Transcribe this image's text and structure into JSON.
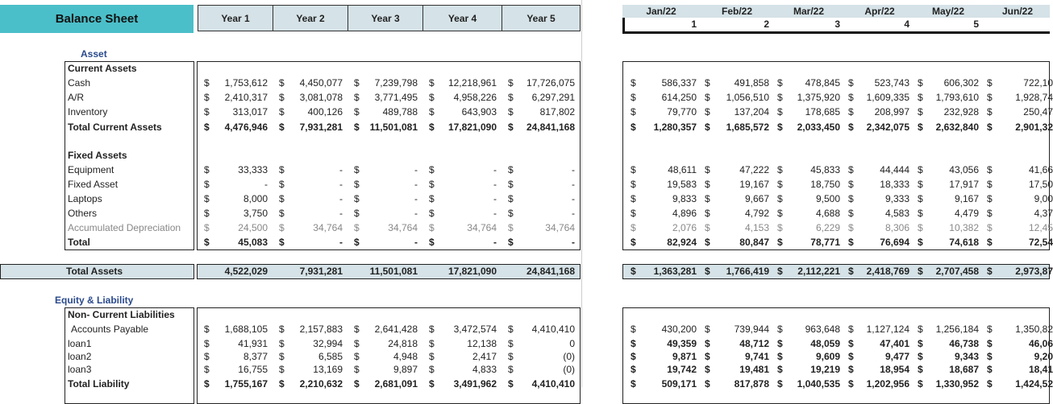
{
  "title": "Balance Sheet",
  "years": [
    "Year 1",
    "Year 2",
    "Year 3",
    "Year 4",
    "Year 5"
  ],
  "months": [
    "Jan/22",
    "Feb/22",
    "Mar/22",
    "Apr/22",
    "May/22",
    "Jun/22"
  ],
  "month_numbers": [
    "1",
    "2",
    "3",
    "4",
    "5"
  ],
  "currency": "$",
  "sections": {
    "asset": "Asset",
    "equity": "Equity & Liability"
  },
  "rows": [
    {
      "label": "Current Assets",
      "style": "b",
      "header": true
    },
    {
      "label": "Cash",
      "years": [
        "1,753,612",
        "4,450,077",
        "7,239,798",
        "12,218,961",
        "17,726,075"
      ],
      "months": [
        "586,337",
        "491,858",
        "478,845",
        "523,743",
        "606,302",
        "722,10"
      ]
    },
    {
      "label": "A/R",
      "years": [
        "2,410,317",
        "3,081,078",
        "3,771,495",
        "4,958,226",
        "6,297,291"
      ],
      "months": [
        "614,250",
        "1,056,510",
        "1,375,920",
        "1,609,335",
        "1,793,610",
        "1,928,74"
      ]
    },
    {
      "label": "Inventory",
      "years": [
        "313,017",
        "400,126",
        "489,788",
        "643,903",
        "817,802"
      ],
      "months": [
        "79,770",
        "137,204",
        "178,685",
        "208,997",
        "232,928",
        "250,47"
      ]
    },
    {
      "label": "Total Current Assets",
      "style": "b",
      "years": [
        "4,476,946",
        "7,931,281",
        "11,501,081",
        "17,821,090",
        "24,841,168"
      ],
      "months": [
        "1,280,357",
        "1,685,572",
        "2,033,450",
        "2,342,075",
        "2,632,840",
        "2,901,32"
      ]
    },
    {
      "label": "Fixed Assets",
      "style": "b",
      "header": true
    },
    {
      "label": "Equipment",
      "years": [
        "33,333",
        "-",
        "-",
        "-",
        "-"
      ],
      "months": [
        "48,611",
        "47,222",
        "45,833",
        "44,444",
        "43,056",
        "41,66"
      ]
    },
    {
      "label": "Fixed Asset",
      "years": [
        "-",
        "-",
        "-",
        "-",
        "-"
      ],
      "months": [
        "19,583",
        "19,167",
        "18,750",
        "18,333",
        "17,917",
        "17,50"
      ]
    },
    {
      "label": "Laptops",
      "years": [
        "8,000",
        "-",
        "-",
        "-",
        "-"
      ],
      "months": [
        "9,833",
        "9,667",
        "9,500",
        "9,333",
        "9,167",
        "9,00"
      ]
    },
    {
      "label": "Others",
      "years": [
        "3,750",
        "-",
        "-",
        "-",
        "-"
      ],
      "months": [
        "4,896",
        "4,792",
        "4,688",
        "4,583",
        "4,479",
        "4,37"
      ]
    },
    {
      "label": "Accumulated Depreciation",
      "style": "g",
      "years": [
        "24,500",
        "34,764",
        "34,764",
        "34,764",
        "34,764"
      ],
      "months": [
        "2,076",
        "4,153",
        "6,229",
        "8,306",
        "10,382",
        "12,45"
      ]
    },
    {
      "label": "Total",
      "style": "b",
      "years": [
        "45,083",
        "-",
        "-",
        "-",
        "-"
      ],
      "months": [
        "82,924",
        "80,847",
        "78,771",
        "76,694",
        "74,618",
        "72,54"
      ]
    },
    {
      "label": "Total Assets",
      "style": "b",
      "years": [
        "4,522,029",
        "7,931,281",
        "11,501,081",
        "17,821,090",
        "24,841,168"
      ],
      "months": [
        "1,363,281",
        "1,766,419",
        "2,112,221",
        "2,418,769",
        "2,707,458",
        "2,973,87"
      ]
    },
    {
      "label": "Non- Current Liabilities",
      "style": "b",
      "header": true
    },
    {
      "label": "Accounts Payable",
      "years": [
        "1,688,105",
        "2,157,883",
        "2,641,428",
        "3,472,574",
        "4,410,410"
      ],
      "months": [
        "430,200",
        "739,944",
        "963,648",
        "1,127,124",
        "1,256,184",
        "1,350,82"
      ]
    },
    {
      "label": "loan1",
      "years": [
        "41,931",
        "32,994",
        "24,818",
        "12,138",
        "0"
      ],
      "months": [
        "49,359",
        "48,712",
        "48,059",
        "47,401",
        "46,738",
        "46,06"
      ],
      "mstyle": "b"
    },
    {
      "label": "loan2",
      "years": [
        "8,377",
        "6,585",
        "4,948",
        "2,417",
        "(0)"
      ],
      "months": [
        "9,871",
        "9,741",
        "9,609",
        "9,477",
        "9,343",
        "9,20"
      ],
      "mstyle": "b"
    },
    {
      "label": "loan3",
      "years": [
        "16,755",
        "13,169",
        "9,897",
        "4,833",
        "(0)"
      ],
      "months": [
        "19,742",
        "19,481",
        "19,219",
        "18,954",
        "18,687",
        "18,41"
      ],
      "mstyle": "b"
    },
    {
      "label": "Total Liability",
      "style": "b",
      "years": [
        "1,755,167",
        "2,210,632",
        "2,681,091",
        "3,491,962",
        "4,410,410"
      ],
      "months": [
        "509,171",
        "817,878",
        "1,040,535",
        "1,202,956",
        "1,330,952",
        "1,424,52"
      ]
    }
  ]
}
